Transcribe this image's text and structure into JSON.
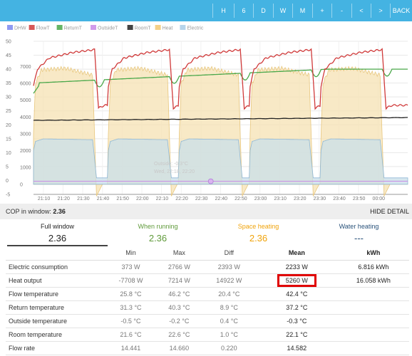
{
  "nav": {
    "buttons": [
      "H",
      "6",
      "D",
      "W",
      "M",
      "+",
      "-",
      "<",
      ">",
      "BACK"
    ]
  },
  "legend": [
    {
      "name": "DHW",
      "color": "#7b88f0"
    },
    {
      "name": "FlowT",
      "color": "#d03a3a"
    },
    {
      "name": "ReturnT",
      "color": "#4aa84a"
    },
    {
      "name": "OutsideT",
      "color": "#c98ae6"
    },
    {
      "name": "RoomT",
      "color": "#222222"
    },
    {
      "name": "Heat",
      "color": "#f2c873"
    },
    {
      "name": "Electric",
      "color": "#a9cde8"
    }
  ],
  "chart_data": {
    "type": "line",
    "x_ticks": [
      "21:10",
      "21:20",
      "21:30",
      "21:40",
      "21:50",
      "22:00",
      "22:10",
      "22:20",
      "22:30",
      "22:40",
      "22:50",
      "23:00",
      "23:10",
      "23:20",
      "23:30",
      "23:40",
      "23:50",
      "00:00"
    ],
    "y_left_ticks": [
      "50",
      "45",
      "40",
      "35",
      "30",
      "25",
      "20",
      "15",
      "10",
      "5",
      "0",
      "-5"
    ],
    "y_left_range": [
      -5,
      50
    ],
    "y_right_ticks": [
      "7000",
      "6000",
      "5000",
      "4000",
      "3000",
      "2000",
      "1000",
      "0"
    ],
    "y_right_range": [
      -600,
      8500
    ],
    "x_range_min": [
      0,
      190
    ],
    "cycles_start_min": [
      0,
      38,
      74,
      110,
      146
    ],
    "cycle_len_min": 32,
    "series": [
      {
        "name": "Heat",
        "axis": "right",
        "color": "#f2c873",
        "profile": "heat_w",
        "cycle_w": [
          [
            0,
            3000
          ],
          [
            1,
            6000
          ],
          [
            4,
            6800
          ],
          [
            16,
            6900
          ],
          [
            30,
            6500
          ],
          [
            32,
            -700
          ],
          [
            35,
            0
          ]
        ]
      },
      {
        "name": "Electric",
        "axis": "right",
        "color": "#a9cde8",
        "cycle_w": [
          [
            0,
            2000
          ],
          [
            1,
            2550
          ],
          [
            5,
            2700
          ],
          [
            30,
            2650
          ],
          [
            32,
            380
          ],
          [
            36,
            380
          ]
        ]
      },
      {
        "name": "FlowT",
        "axis": "left",
        "color": "#d03a3a",
        "cycle_c": [
          [
            0,
            34
          ],
          [
            2,
            40
          ],
          [
            8,
            44
          ],
          [
            20,
            46
          ],
          [
            31,
            47
          ],
          [
            33,
            26
          ],
          [
            36,
            27
          ]
        ]
      },
      {
        "name": "ReturnT",
        "axis": "left",
        "color": "#4aa84a",
        "range_c": [
          31.3,
          40.3
        ]
      },
      {
        "name": "RoomT",
        "axis": "left",
        "color": "#222222",
        "range_c": [
          21.6,
          22.6
        ]
      },
      {
        "name": "OutsideT",
        "axis": "left",
        "color": "#c98ae6",
        "value_c": -0.3
      }
    ],
    "tooltip": {
      "line1": "Outside: -0.3°C",
      "line2": "Wed, 22:18, 22:20"
    }
  },
  "cop": {
    "label": "COP in window:",
    "value": "2.36",
    "hide_label": "HIDE DETAIL"
  },
  "tabs": [
    {
      "title": "Full window",
      "value": "2.36"
    },
    {
      "title": "When running",
      "value": "2.36"
    },
    {
      "title": "Space heating",
      "value": "2.36"
    },
    {
      "title": "Water heating",
      "value": "---"
    }
  ],
  "table": {
    "headers": [
      "",
      "Min",
      "Max",
      "Diff",
      "Mean",
      "kWh"
    ],
    "rows": [
      {
        "name": "Electric consumption",
        "min": "373 W",
        "max": "2766 W",
        "diff": "2393 W",
        "mean": "2233 W",
        "kwh": "6.816 kWh"
      },
      {
        "name": "Heat output",
        "min": "-7708 W",
        "max": "7214 W",
        "diff": "14922 W",
        "mean": "5260 W",
        "kwh": "16.058 kWh"
      },
      {
        "name": "Flow temperature",
        "min": "25.8 °C",
        "max": "46.2 °C",
        "diff": "20.4 °C",
        "mean": "42.4 °C",
        "kwh": ""
      },
      {
        "name": "Return temperature",
        "min": "31.3 °C",
        "max": "40.3 °C",
        "diff": "8.9 °C",
        "mean": "37.2 °C",
        "kwh": ""
      },
      {
        "name": "Outside temperature",
        "min": "-0.5 °C",
        "max": "-0.2 °C",
        "diff": "0.4 °C",
        "mean": "-0.3 °C",
        "kwh": ""
      },
      {
        "name": "Room temperature",
        "min": "21.6 °C",
        "max": "22.6 °C",
        "diff": "1.0 °C",
        "mean": "22.1 °C",
        "kwh": ""
      },
      {
        "name": "Flow rate",
        "min": "14.441",
        "max": "14.660",
        "diff": "0.220",
        "mean": "14.582",
        "kwh": ""
      }
    ]
  }
}
